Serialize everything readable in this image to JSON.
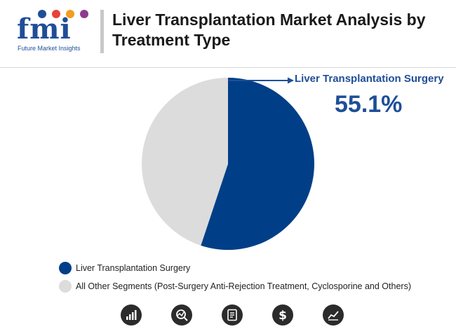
{
  "brand": {
    "logo_text": "fmi",
    "logo_subtitle": "Future Market Insights",
    "colors": {
      "blue": "#1f4e98",
      "dot1": "#1f4e98",
      "dot2": "#e6433a",
      "dot3": "#f39c1f",
      "dot4": "#8e3a8e"
    }
  },
  "header": {
    "title": "Liver Transplantation Market Analysis by Treatment Type"
  },
  "callout": {
    "label": "Liver Transplantation Surgery",
    "value": "55.1%"
  },
  "chart_data": {
    "type": "pie",
    "title": "Liver Transplantation Market Analysis by Treatment Type",
    "slices": [
      {
        "name": "Liver Transplantation Surgery",
        "value": 55.1,
        "color": "#003f87"
      },
      {
        "name": "All Other Segments (Post-Surgery Anti-Rejection Treatment, Cyclosporine and Others)",
        "value": 44.9,
        "color": "#dcdcdc"
      }
    ],
    "start": "12 o'clock, clockwise",
    "legend_position": "bottom-left"
  },
  "legend": {
    "items": [
      {
        "label": "Liver Transplantation Surgery",
        "color": "#003f87"
      },
      {
        "label": "All Other Segments (Post-Surgery Anti-Rejection Treatment, Cyclosporine and Others)",
        "color": "#dcdcdc"
      }
    ]
  },
  "footer_icons": [
    "bar-chart-icon",
    "chart-search-icon",
    "report-icon",
    "dollar-icon",
    "trend-chart-icon"
  ]
}
